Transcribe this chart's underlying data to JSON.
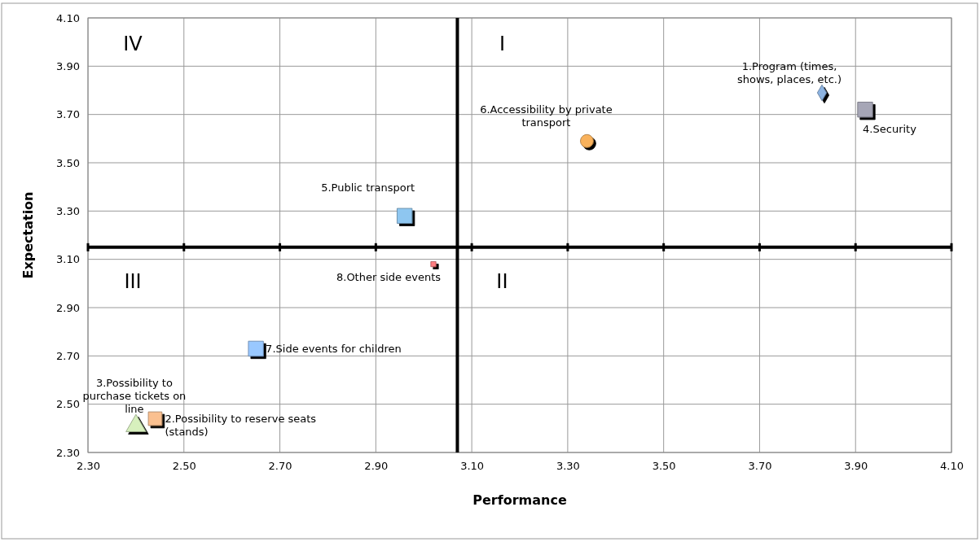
{
  "chart_data": {
    "type": "scatter",
    "xlabel": "Performance",
    "ylabel": "Expectation",
    "xlim": [
      2.3,
      4.1
    ],
    "xticks": [
      {
        "value": 2.3,
        "label": "2.30"
      },
      {
        "value": 2.5,
        "label": "2.50"
      },
      {
        "value": 2.7,
        "label": "2.70"
      },
      {
        "value": 2.9,
        "label": "2.90"
      },
      {
        "value": 3.1,
        "label": "3.10"
      },
      {
        "value": 3.3,
        "label": "3.30"
      },
      {
        "value": 3.5,
        "label": "3.50"
      },
      {
        "value": 3.7,
        "label": "3.70"
      },
      {
        "value": 3.9,
        "label": "3.90"
      },
      {
        "value": 4.1,
        "label": "4.10"
      }
    ],
    "ylim": [
      2.3,
      4.1
    ],
    "yticks": [
      {
        "value": 2.3,
        "label": "2.30"
      },
      {
        "value": 2.5,
        "label": "2.50"
      },
      {
        "value": 2.7,
        "label": "2.70"
      },
      {
        "value": 2.9,
        "label": "2.90"
      },
      {
        "value": 3.1,
        "label": "3.10"
      },
      {
        "value": 3.3,
        "label": "3.30"
      },
      {
        "value": 3.5,
        "label": "3.50"
      },
      {
        "value": 3.7,
        "label": "3.70"
      },
      {
        "value": 3.9,
        "label": "3.90"
      },
      {
        "value": 4.1,
        "label": "4.10"
      }
    ],
    "grid": true,
    "legend": false,
    "series": [
      {
        "name": "1.Program (times, shows, places, etc.)",
        "color": "#8db4e2",
        "marker": "diamond",
        "x": [
          3.83
        ],
        "values": [
          3.79
        ]
      },
      {
        "name": "2.Possibility to reserve seats (stands)",
        "color": "#fac090",
        "marker": "square",
        "x": [
          2.44
        ],
        "values": [
          2.44
        ]
      },
      {
        "name": "3.Possibility to purchase tickets on line",
        "color": "#d7f0bd",
        "marker": "triangle",
        "x": [
          2.4
        ],
        "values": [
          2.41
        ]
      },
      {
        "name": "4.Security",
        "color": "#a6a6b6",
        "marker": "square",
        "x": [
          3.92
        ],
        "values": [
          3.72
        ]
      },
      {
        "name": "5.Public transport",
        "color": "#8ec6f0",
        "marker": "square",
        "x": [
          2.96
        ],
        "values": [
          3.28
        ]
      },
      {
        "name": "6.Accessibility by private transport",
        "color": "#f9b25c",
        "marker": "circle",
        "x": [
          3.34
        ],
        "values": [
          3.59
        ]
      },
      {
        "name": "7.Side events for children",
        "color": "#99c8ff",
        "marker": "square",
        "x": [
          2.65
        ],
        "values": [
          2.73
        ]
      },
      {
        "name": "8.Other side events",
        "color": "#ff7c80",
        "marker": "square",
        "x": [
          3.02
        ],
        "values": [
          3.08
        ]
      }
    ],
    "ref_lines": [
      {
        "axis": "x",
        "value": 3.07,
        "color": "#000000"
      },
      {
        "axis": "y",
        "value": 3.15,
        "color": "#000000"
      }
    ],
    "annotations": [
      "IV",
      "I",
      "III",
      "II"
    ]
  }
}
